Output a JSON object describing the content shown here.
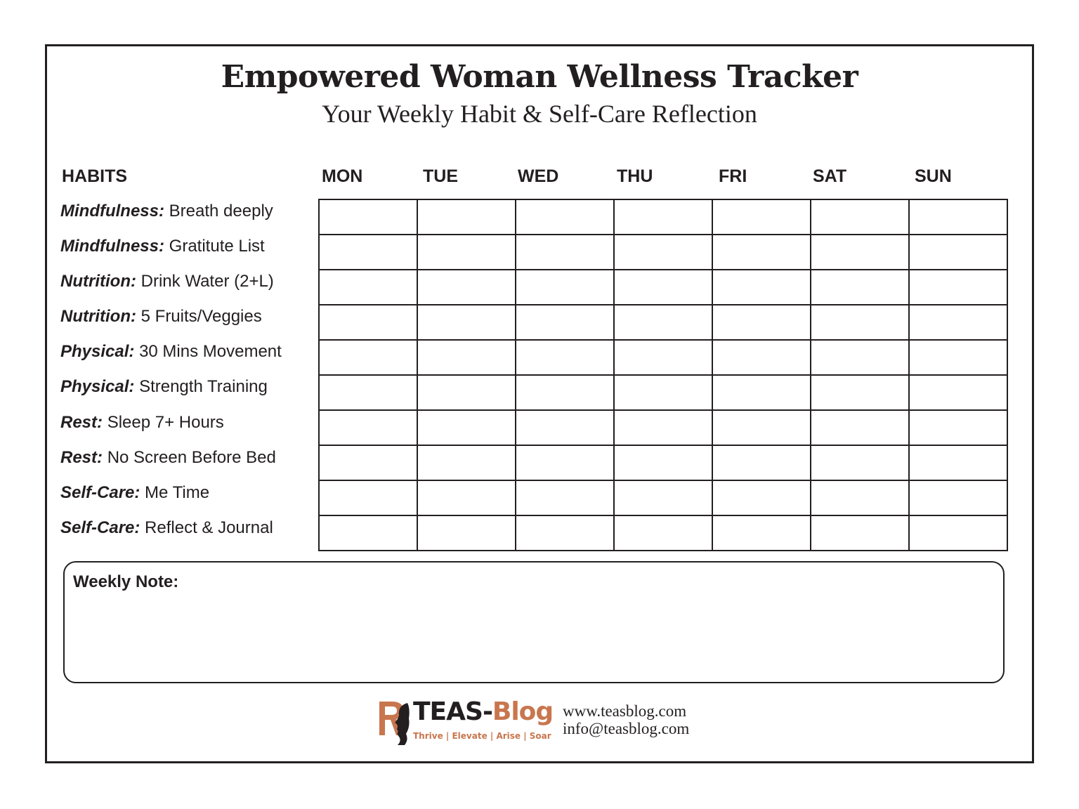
{
  "title": "Empowered Woman Wellness Tracker",
  "subtitle": "Your Weekly Habit & Self-Care Reflection",
  "habits_header": "HABITS",
  "days": [
    "MON",
    "TUE",
    "WED",
    "THU",
    "FRI",
    "SAT",
    "SUN"
  ],
  "habits": [
    {
      "category": "Mindfulness:",
      "name": "Breath deeply"
    },
    {
      "category": "Mindfulness:",
      "name": "Gratitute List"
    },
    {
      "category": "Nutrition:",
      "name": "Drink Water (2+L)"
    },
    {
      "category": "Nutrition:",
      "name": "5 Fruits/Veggies"
    },
    {
      "category": "Physical:",
      "name": "30 Mins Movement"
    },
    {
      "category": "Physical:",
      "name": "Strength Training"
    },
    {
      "category": "Rest:",
      "name": "Sleep 7+ Hours"
    },
    {
      "category": "Rest:",
      "name": "No Screen Before Bed"
    },
    {
      "category": "Self-Care:",
      "name": "Me Time"
    },
    {
      "category": "Self-Care:",
      "name": "Reflect & Journal"
    }
  ],
  "weekly_note_label": "Weekly Note:",
  "logo": {
    "name_part1": "TEAS-",
    "name_part2": "Blog",
    "tagline": "Thrive | Elevate | Arise | Soar"
  },
  "contact": {
    "website": "www.teasblog.com",
    "email": "info@teasblog.com"
  },
  "colors": {
    "ink": "#231f20",
    "brand": "#c8764e"
  }
}
